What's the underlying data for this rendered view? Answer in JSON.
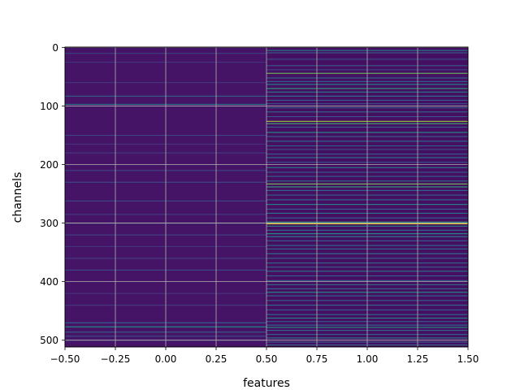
{
  "chart_data": {
    "type": "heatmap",
    "title": "",
    "xlabel": "features",
    "ylabel": "channels",
    "x_columns": [
      0,
      1
    ],
    "n_rows": 512,
    "xlim": [
      -0.5,
      1.5
    ],
    "ylim": [
      511.5,
      -0.5
    ],
    "y_inverted": true,
    "grid": true,
    "colormap": "viridis",
    "x_ticks": [
      -0.5,
      -0.25,
      0.0,
      0.25,
      0.5,
      0.75,
      1.0,
      1.25,
      1.5
    ],
    "x_tick_labels": [
      "−0.50",
      "−0.25",
      "0.00",
      "0.25",
      "0.50",
      "0.75",
      "1.00",
      "1.25",
      "1.50"
    ],
    "y_ticks": [
      0,
      100,
      200,
      300,
      400,
      500
    ],
    "y_tick_labels": [
      "0",
      "100",
      "200",
      "300",
      "400",
      "500"
    ],
    "value_range": [
      0,
      1
    ],
    "base_levels": {
      "column_0": 0.05,
      "column_1": 0.04
    },
    "highlight_rows": {
      "column_0": [
        [
          10,
          0.18
        ],
        [
          25,
          0.15
        ],
        [
          60,
          0.16
        ],
        [
          83,
          0.3
        ],
        [
          97,
          0.38
        ],
        [
          150,
          0.2
        ],
        [
          165,
          0.15
        ],
        [
          180,
          0.18
        ],
        [
          210,
          0.2
        ],
        [
          230,
          0.22
        ],
        [
          262,
          0.22
        ],
        [
          285,
          0.18
        ],
        [
          300,
          0.3
        ],
        [
          320,
          0.2
        ],
        [
          340,
          0.15
        ],
        [
          360,
          0.18
        ],
        [
          380,
          0.22
        ],
        [
          420,
          0.15
        ],
        [
          440,
          0.18
        ],
        [
          470,
          0.34
        ],
        [
          477,
          0.5
        ],
        [
          486,
          0.3
        ],
        [
          493,
          0.25
        ],
        [
          500,
          0.2
        ]
      ],
      "column_1": [
        [
          5,
          0.42
        ],
        [
          9,
          0.3
        ],
        [
          20,
          0.25
        ],
        [
          31,
          0.28
        ],
        [
          38,
          0.22
        ],
        [
          44,
          0.7
        ],
        [
          52,
          0.35
        ],
        [
          58,
          0.33
        ],
        [
          63,
          0.45
        ],
        [
          70,
          0.55
        ],
        [
          76,
          0.42
        ],
        [
          83,
          0.38
        ],
        [
          90,
          0.3
        ],
        [
          96,
          0.25
        ],
        [
          103,
          0.3
        ],
        [
          110,
          0.35
        ],
        [
          118,
          0.25
        ],
        [
          126,
          0.78
        ],
        [
          130,
          0.62
        ],
        [
          136,
          0.3
        ],
        [
          145,
          0.5
        ],
        [
          152,
          0.3
        ],
        [
          160,
          0.35
        ],
        [
          168,
          0.3
        ],
        [
          174,
          0.25
        ],
        [
          182,
          0.3
        ],
        [
          188,
          0.38
        ],
        [
          196,
          0.28
        ],
        [
          205,
          0.42
        ],
        [
          213,
          0.3
        ],
        [
          220,
          0.3
        ],
        [
          228,
          0.35
        ],
        [
          233,
          0.72
        ],
        [
          238,
          0.58
        ],
        [
          244,
          0.35
        ],
        [
          252,
          0.3
        ],
        [
          260,
          0.35
        ],
        [
          268,
          0.45
        ],
        [
          276,
          0.3
        ],
        [
          283,
          0.38
        ],
        [
          291,
          0.3
        ],
        [
          298,
          0.55
        ],
        [
          301,
          0.97
        ],
        [
          305,
          0.45
        ],
        [
          312,
          0.35
        ],
        [
          318,
          0.5
        ],
        [
          323,
          0.42
        ],
        [
          330,
          0.3
        ],
        [
          338,
          0.35
        ],
        [
          344,
          0.32
        ],
        [
          352,
          0.38
        ],
        [
          360,
          0.3
        ],
        [
          368,
          0.35
        ],
        [
          375,
          0.3
        ],
        [
          382,
          0.38
        ],
        [
          390,
          0.3
        ],
        [
          398,
          0.3
        ],
        [
          405,
          0.35
        ],
        [
          412,
          0.32
        ],
        [
          418,
          0.5
        ],
        [
          424,
          0.35
        ],
        [
          432,
          0.3
        ],
        [
          440,
          0.35
        ],
        [
          448,
          0.3
        ],
        [
          456,
          0.35
        ],
        [
          462,
          0.42
        ],
        [
          468,
          0.3
        ],
        [
          474,
          0.36
        ],
        [
          478,
          0.5
        ],
        [
          483,
          0.35
        ],
        [
          490,
          0.32
        ],
        [
          496,
          0.42
        ],
        [
          503,
          0.3
        ],
        [
          508,
          0.35
        ]
      ]
    }
  }
}
